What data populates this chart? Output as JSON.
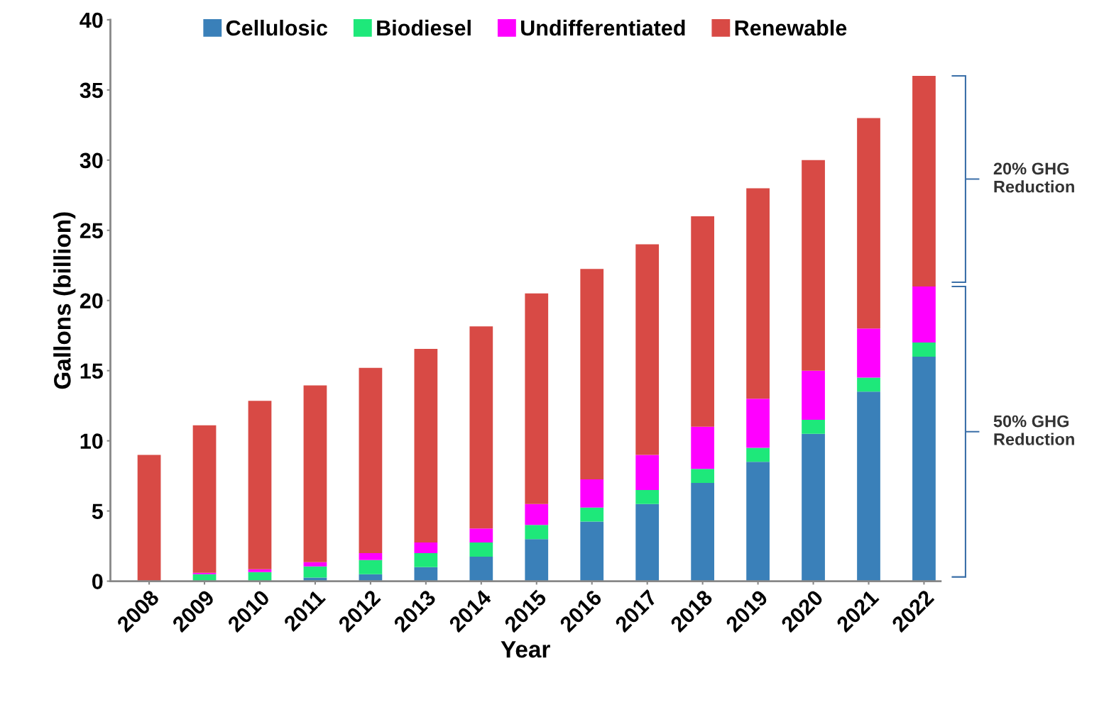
{
  "chart_data": {
    "type": "bar",
    "stacked": true,
    "xlabel": "Year",
    "ylabel": "Gallons (billion)",
    "categories": [
      "2008",
      "2009",
      "2010",
      "2011",
      "2012",
      "2013",
      "2014",
      "2015",
      "2016",
      "2017",
      "2018",
      "2019",
      "2020",
      "2021",
      "2022"
    ],
    "series": [
      {
        "name": "Cellulosic",
        "color": "#3a80b9",
        "values": [
          0,
          0,
          null,
          0.25,
          0.5,
          1.0,
          1.75,
          3.0,
          4.25,
          5.5,
          7.0,
          8.5,
          10.5,
          13.5,
          16.0
        ]
      },
      {
        "name": "Biodiesel",
        "color": "#1ee87a",
        "values": [
          0,
          0.5,
          0.65,
          0.8,
          1.0,
          1.0,
          1.0,
          1.0,
          1.0,
          1.0,
          1.0,
          1.0,
          1.0,
          1.0,
          1.0
        ]
      },
      {
        "name": "Undifferentiated",
        "color": "#ff00ff",
        "values": [
          0,
          0.1,
          0.2,
          0.3,
          0.5,
          0.75,
          1.0,
          1.5,
          2.0,
          2.5,
          3.0,
          3.5,
          3.5,
          3.5,
          4.0
        ]
      },
      {
        "name": "Renewable",
        "color": "#d84a45",
        "values": [
          9.0,
          10.5,
          12.0,
          12.6,
          13.2,
          13.8,
          14.4,
          15.0,
          15.0,
          15.0,
          15.0,
          15.0,
          15.0,
          15.0,
          15.0
        ]
      }
    ],
    "ylim": [
      0,
      40
    ],
    "yticks": [
      0,
      5,
      10,
      15,
      20,
      25,
      30,
      35,
      40
    ],
    "grid": false,
    "legend": "top",
    "annotations": [
      "20% GHG Reduction",
      "50% GHG Reduction"
    ]
  }
}
